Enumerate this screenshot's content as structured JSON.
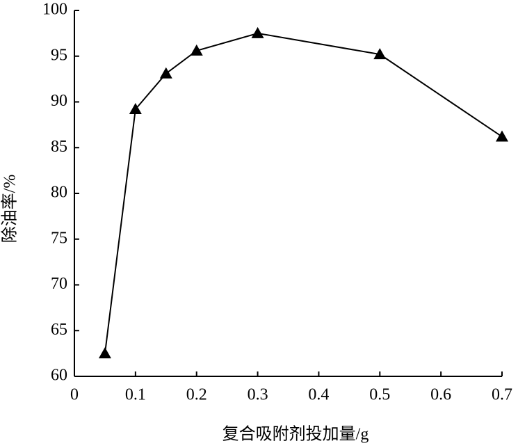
{
  "chart_data": {
    "type": "line",
    "xlabel": "复合吸附剂投加量/g",
    "ylabel": "除油率/%",
    "x": [
      0.05,
      0.1,
      0.15,
      0.2,
      0.3,
      0.5,
      0.7
    ],
    "series": [
      {
        "name": "除油率",
        "color": "#000000",
        "values": [
          62.5,
          89.2,
          93.1,
          95.6,
          97.5,
          95.2,
          86.2
        ]
      }
    ],
    "xlim": [
      0,
      0.7
    ],
    "xticks": [
      0,
      0.1,
      0.2,
      0.3,
      0.4,
      0.5,
      0.6,
      0.7
    ],
    "ylim": [
      60,
      100
    ],
    "yticks": [
      60,
      65,
      70,
      75,
      80,
      85,
      90,
      95,
      100
    ],
    "marker": "triangle"
  }
}
